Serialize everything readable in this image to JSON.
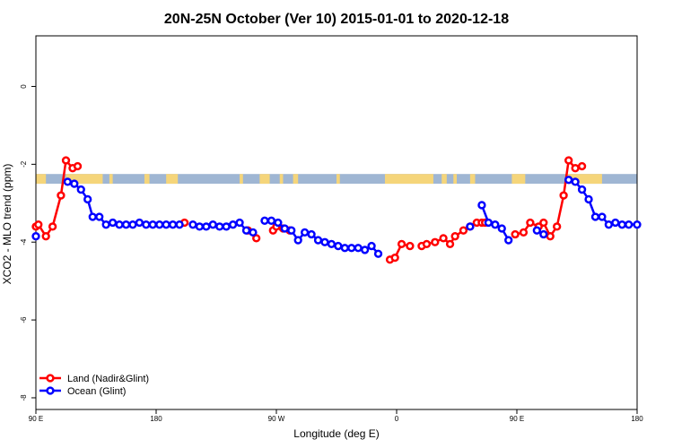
{
  "chart_data": {
    "type": "line",
    "title": "20N-25N October (Ver 10)   2015-01-01 to 2020-12-18",
    "xlabel": "Longitude (deg E)",
    "ylabel": "XCO2 - MLO trend (ppm)",
    "xlim": [
      90,
      450
    ],
    "ylim": [
      -8.3,
      1.3
    ],
    "x_ticks": [
      90,
      162,
      234,
      306,
      378,
      450
    ],
    "x_tick_labels": [
      "90 E",
      "180",
      "90 W",
      "0",
      "90 E",
      "180"
    ],
    "y_ticks": [
      0,
      -2,
      -4,
      -6,
      -8
    ],
    "y_tick_labels": [
      "0",
      "-2",
      "-4",
      "-6",
      "-8"
    ],
    "grid": false,
    "legend_position": "bottom-left",
    "map_strip": {
      "y_range": [
        -2.5,
        -2.25
      ],
      "ocean_color": "#9fb6d3",
      "land_color": "#f5d57a"
    },
    "series": [
      {
        "name": "Land (Nadir&Glint)",
        "color": "#ff0000",
        "points": [
          [
            90,
            -3.6
          ],
          [
            91.5,
            -3.55
          ],
          [
            96,
            -3.85
          ],
          [
            100,
            -3.6
          ],
          [
            105,
            -2.8
          ],
          [
            108,
            -1.9
          ],
          [
            112,
            -2.1
          ],
          [
            115,
            -2.05
          ],
          [
            179,
            -3.5
          ],
          [
            217,
            -3.7
          ],
          [
            222,
            -3.9
          ],
          [
            232,
            -3.7
          ],
          [
            234,
            -3.6
          ],
          [
            238,
            -3.65
          ],
          [
            242,
            -3.7
          ],
          [
            302,
            -4.45
          ],
          [
            305,
            -4.4
          ],
          [
            309,
            -4.05
          ],
          [
            314,
            -4.1
          ],
          [
            321,
            -4.1
          ],
          [
            324,
            -4.05
          ],
          [
            329,
            -4.0
          ],
          [
            334,
            -3.9
          ],
          [
            338,
            -4.05
          ],
          [
            341,
            -3.85
          ],
          [
            346,
            -3.7
          ],
          [
            350,
            -3.6
          ],
          [
            354,
            -3.5
          ],
          [
            357,
            -3.5
          ],
          [
            359,
            -3.5
          ],
          [
            377,
            -3.8
          ],
          [
            382,
            -3.75
          ],
          [
            386,
            -3.5
          ],
          [
            391,
            -3.6
          ],
          [
            394,
            -3.5
          ],
          [
            398,
            -3.85
          ],
          [
            402,
            -3.6
          ],
          [
            406,
            -2.8
          ],
          [
            409,
            -1.9
          ],
          [
            413,
            -2.1
          ],
          [
            417,
            -2.05
          ]
        ]
      },
      {
        "name": "Ocean (Glint)",
        "color": "#0000ff",
        "points": [
          [
            90,
            -3.85
          ],
          [
            109,
            -2.45
          ],
          [
            113,
            -2.5
          ],
          [
            117,
            -2.65
          ],
          [
            121,
            -2.9
          ],
          [
            124,
            -3.35
          ],
          [
            128,
            -3.35
          ],
          [
            132,
            -3.55
          ],
          [
            136,
            -3.5
          ],
          [
            140,
            -3.55
          ],
          [
            144,
            -3.55
          ],
          [
            148,
            -3.55
          ],
          [
            152,
            -3.5
          ],
          [
            156,
            -3.55
          ],
          [
            160,
            -3.55
          ],
          [
            164,
            -3.55
          ],
          [
            168,
            -3.55
          ],
          [
            172,
            -3.55
          ],
          [
            176,
            -3.55
          ],
          [
            184,
            -3.55
          ],
          [
            188,
            -3.6
          ],
          [
            192,
            -3.6
          ],
          [
            196,
            -3.55
          ],
          [
            200,
            -3.6
          ],
          [
            204,
            -3.6
          ],
          [
            208,
            -3.55
          ],
          [
            212,
            -3.5
          ],
          [
            216,
            -3.7
          ],
          [
            220,
            -3.75
          ],
          [
            227,
            -3.45
          ],
          [
            231,
            -3.45
          ],
          [
            235,
            -3.5
          ],
          [
            239,
            -3.65
          ],
          [
            243,
            -3.7
          ],
          [
            247,
            -3.95
          ],
          [
            251,
            -3.75
          ],
          [
            255,
            -3.8
          ],
          [
            259,
            -3.95
          ],
          [
            263,
            -4.0
          ],
          [
            267,
            -4.05
          ],
          [
            271,
            -4.1
          ],
          [
            275,
            -4.15
          ],
          [
            279,
            -4.15
          ],
          [
            283,
            -4.15
          ],
          [
            287,
            -4.2
          ],
          [
            291,
            -4.1
          ],
          [
            295,
            -4.3
          ],
          [
            350,
            -3.6
          ],
          [
            357,
            -3.05
          ],
          [
            361,
            -3.5
          ],
          [
            365,
            -3.55
          ],
          [
            369,
            -3.65
          ],
          [
            373,
            -3.95
          ],
          [
            390,
            -3.7
          ],
          [
            394,
            -3.8
          ],
          [
            409,
            -2.4
          ],
          [
            413,
            -2.45
          ],
          [
            417,
            -2.65
          ],
          [
            421,
            -2.9
          ],
          [
            425,
            -3.35
          ],
          [
            429,
            -3.35
          ],
          [
            433,
            -3.55
          ],
          [
            437,
            -3.5
          ],
          [
            441,
            -3.55
          ],
          [
            445,
            -3.55
          ],
          [
            450,
            -3.55
          ]
        ]
      }
    ]
  }
}
